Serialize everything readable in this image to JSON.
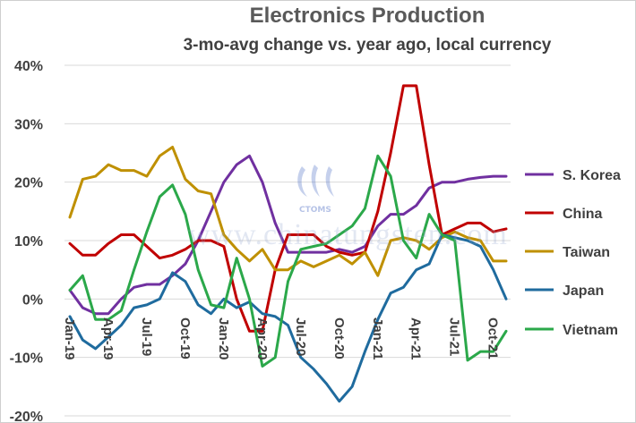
{
  "chart_data": {
    "type": "line",
    "title": "Electronics Production",
    "subtitle": "3-mo-avg change vs. year ago, local currency",
    "xlabel": "",
    "ylabel": "",
    "ylim": [
      -20,
      40
    ],
    "y_ticks": [
      "40%",
      "30%",
      "20%",
      "10%",
      "0%",
      "-10%",
      "-20%"
    ],
    "y_tick_values": [
      40,
      30,
      20,
      10,
      0,
      -10,
      -20
    ],
    "x_tick_labels": [
      "Jan-19",
      "Apr-19",
      "Jul-19",
      "Oct-19",
      "Jan-20",
      "Apr-20",
      "Jul-20",
      "Oct-20",
      "Jan-21",
      "Apr-21",
      "Jul-21",
      "Oct-21"
    ],
    "x_tick_months": [
      0,
      3,
      6,
      9,
      12,
      15,
      18,
      21,
      24,
      27,
      30,
      33
    ],
    "months_count": 35,
    "grid": "horizontal",
    "legend_position": "right",
    "series": [
      {
        "name": "S. Korea",
        "color": "#7030a0",
        "values": [
          1.5,
          -1.5,
          -2.5,
          -2.5,
          0,
          2,
          2.5,
          2.5,
          4,
          6,
          10,
          15,
          20,
          23,
          24.5,
          20,
          13,
          8,
          8,
          8,
          8,
          8.5,
          8,
          9,
          12.5,
          14.5,
          14.5,
          16,
          19,
          20,
          20,
          20.5,
          20.8,
          21,
          21
        ]
      },
      {
        "name": "China",
        "color": "#c00000",
        "values": [
          9.5,
          7.5,
          7.5,
          9.5,
          11,
          11,
          9,
          7,
          7.5,
          8.5,
          10,
          10,
          9,
          0,
          -5.5,
          -5.5,
          5,
          11,
          11,
          11,
          9,
          8,
          7.5,
          8,
          15,
          25,
          36.5,
          36.5,
          23,
          11,
          12,
          13,
          13,
          11.5,
          12
        ]
      },
      {
        "name": "Taiwan",
        "color": "#bf9000",
        "values": [
          14,
          20.5,
          21,
          23,
          22,
          22,
          21,
          24.5,
          26,
          20.5,
          18.5,
          18,
          11,
          8.5,
          6.5,
          8.5,
          5,
          5,
          6.5,
          5.5,
          6.5,
          7.5,
          6,
          8,
          4,
          10,
          10.5,
          10,
          8.5,
          10.5,
          11.5,
          10.5,
          10,
          6.5,
          6.5
        ]
      },
      {
        "name": "Japan",
        "color": "#1f6b9e",
        "values": [
          -3,
          -7,
          -8.5,
          -6.5,
          -4.5,
          -1.5,
          -1,
          0,
          4.5,
          3,
          -1,
          -2.5,
          0,
          -1.5,
          -0.5,
          -2.5,
          -3,
          -4.5,
          -10,
          -12,
          -14.5,
          -17.5,
          -15,
          -9,
          -3.5,
          1,
          2,
          5,
          6,
          11,
          10.5,
          10,
          9,
          5,
          0
        ]
      },
      {
        "name": "Vietnam",
        "color": "#2ba84a",
        "values": [
          1.5,
          4,
          -3.5,
          -3.5,
          -2,
          5,
          11.5,
          17.5,
          19.5,
          14.5,
          5,
          -1,
          -1.5,
          7,
          0,
          -11.5,
          -10,
          3,
          8.5,
          9,
          9.5,
          11,
          12.5,
          15.5,
          24.5,
          21,
          10,
          7,
          14.5,
          11,
          10,
          -10.5,
          -9,
          -9,
          -5.5
        ]
      }
    ]
  },
  "watermark": {
    "text": "www.chinatungsten.com",
    "logo_text": "CTOMS"
  }
}
